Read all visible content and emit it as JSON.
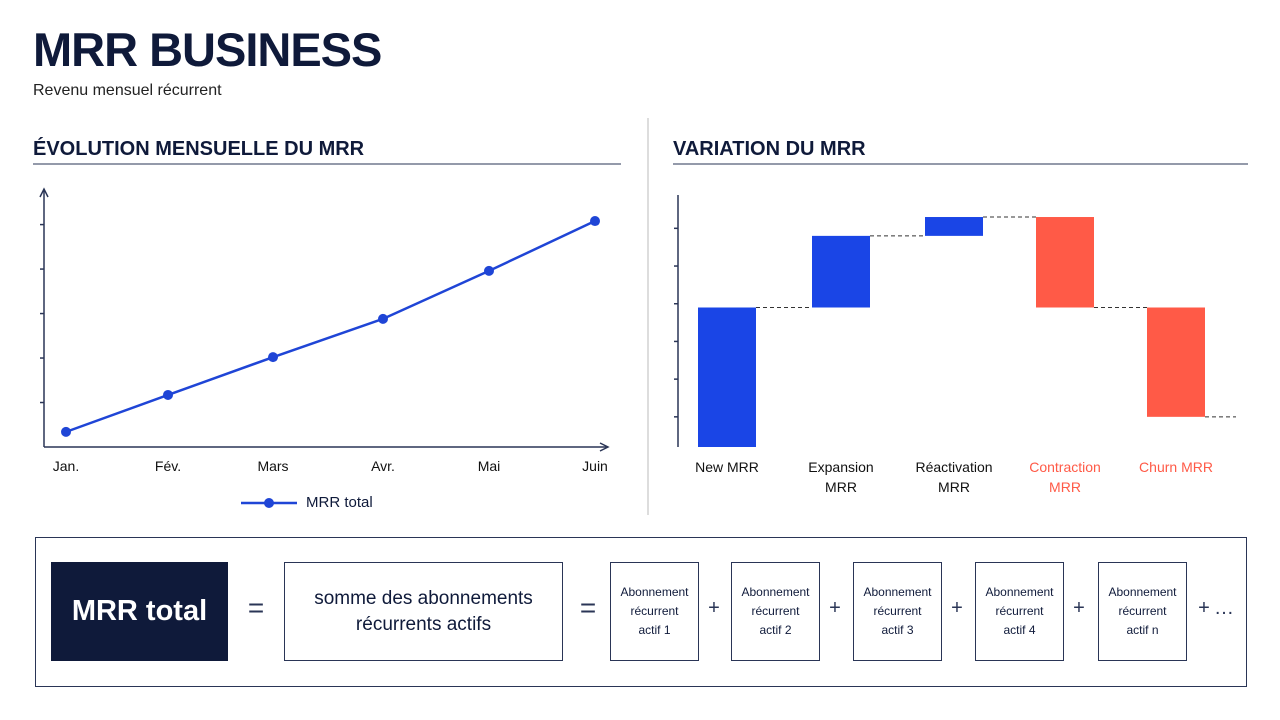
{
  "header": {
    "title": "MRR BUSINESS",
    "subtitle": "Revenu mensuel récurrent"
  },
  "chart_data": [
    {
      "type": "line",
      "title": "ÉVOLUTION MENSUELLE DU MRR",
      "categories": [
        "Jan.",
        "Fév.",
        "Mars",
        "Avr.",
        "Mai",
        "Juin"
      ],
      "series": [
        {
          "name": "MRR total",
          "color": "#1f45d6",
          "values": [
            0.34,
            1.17,
            2.02,
            2.88,
            3.96,
            5.08
          ]
        }
      ],
      "ylim": [
        0,
        5.8
      ],
      "yticks": [
        1,
        2,
        3,
        4,
        5
      ],
      "legend": "bottom"
    },
    {
      "type": "waterfall",
      "title": "VARIATION DU MRR",
      "categories": [
        "New MRR",
        "Expansion MRR",
        "Réactivation MRR",
        "Contraction MRR",
        "Churn MRR"
      ],
      "values": [
        3.7,
        1.9,
        0.5,
        -2.4,
        -2.9
      ],
      "colors": {
        "increase": "#1a45e6",
        "decrease": "#ff5a47"
      },
      "ylim": [
        0,
        6.7
      ],
      "yticks": [
        0.8,
        1.8,
        2.8,
        3.8,
        4.8,
        5.8
      ]
    }
  ],
  "formula": {
    "lhs": "MRR total",
    "eq": "=",
    "definition": "somme des abonnements récurrents actifs",
    "items": [
      "Abonnement récurrent actif 1",
      "Abonnement récurrent actif 2",
      "Abonnement récurrent actif 3",
      "Abonnement récurrent actif 4",
      "Abonnement récurrent actif n"
    ],
    "plus": "+",
    "ellipsis": "…"
  }
}
